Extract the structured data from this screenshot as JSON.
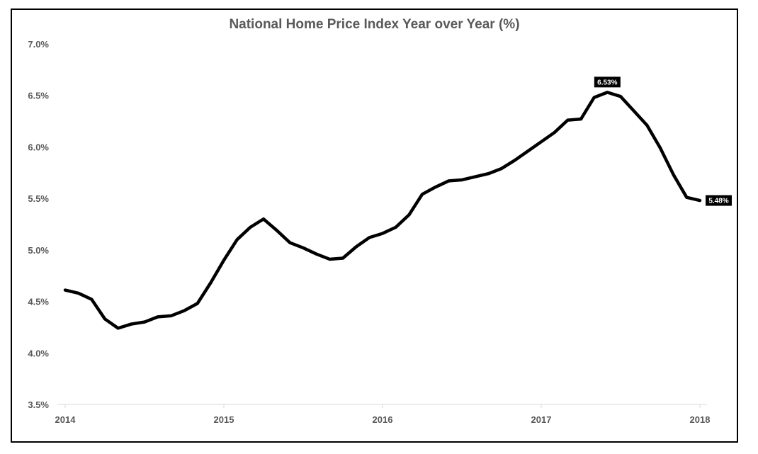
{
  "chart_data": {
    "type": "line",
    "title": "National Home Price Index Year over Year (%)",
    "xlabel": "",
    "ylabel": "",
    "ylim": [
      3.5,
      7.0
    ],
    "y_ticks": [
      "3.5%",
      "4.0%",
      "4.5%",
      "5.0%",
      "5.5%",
      "6.0%",
      "6.5%",
      "7.0%"
    ],
    "x_ticks": [
      "2014",
      "2015",
      "2016",
      "2017",
      "2018"
    ],
    "grid": false,
    "legend": "none",
    "line_color": "#000000",
    "series": [
      {
        "x": [
          "2014-01",
          "2014-02",
          "2014-03",
          "2014-04",
          "2014-05",
          "2014-06",
          "2014-07",
          "2014-08",
          "2014-09",
          "2014-10",
          "2014-11",
          "2014-12",
          "2015-01",
          "2015-02",
          "2015-03",
          "2015-04",
          "2015-05",
          "2015-06",
          "2015-07",
          "2015-08",
          "2015-09",
          "2015-10",
          "2015-11",
          "2015-12",
          "2016-01",
          "2016-02",
          "2016-03",
          "2016-04",
          "2016-05",
          "2016-06",
          "2016-07",
          "2016-08",
          "2016-09",
          "2016-10",
          "2016-11",
          "2016-12",
          "2017-01",
          "2017-02",
          "2017-03",
          "2017-04",
          "2017-05",
          "2017-06",
          "2017-07",
          "2017-08",
          "2017-09",
          "2017-10",
          "2017-11",
          "2017-12",
          "2018-01"
        ],
        "values": [
          4.61,
          4.58,
          4.52,
          4.33,
          4.24,
          4.28,
          4.3,
          4.35,
          4.36,
          4.41,
          4.48,
          4.68,
          4.9,
          5.1,
          5.22,
          5.3,
          5.19,
          5.07,
          5.02,
          4.96,
          4.91,
          4.92,
          5.03,
          5.12,
          5.16,
          5.22,
          5.34,
          5.54,
          5.61,
          5.67,
          5.68,
          5.71,
          5.74,
          5.79,
          5.87,
          5.96,
          6.05,
          6.14,
          6.26,
          6.27,
          6.48,
          6.53,
          6.49,
          6.35,
          6.21,
          5.99,
          5.73,
          5.51,
          5.48
        ]
      }
    ],
    "data_labels": [
      {
        "x": "2017-06",
        "text": "6.53%",
        "position": "above"
      },
      {
        "x": "2018-01",
        "text": "5.48%",
        "position": "right"
      }
    ]
  }
}
